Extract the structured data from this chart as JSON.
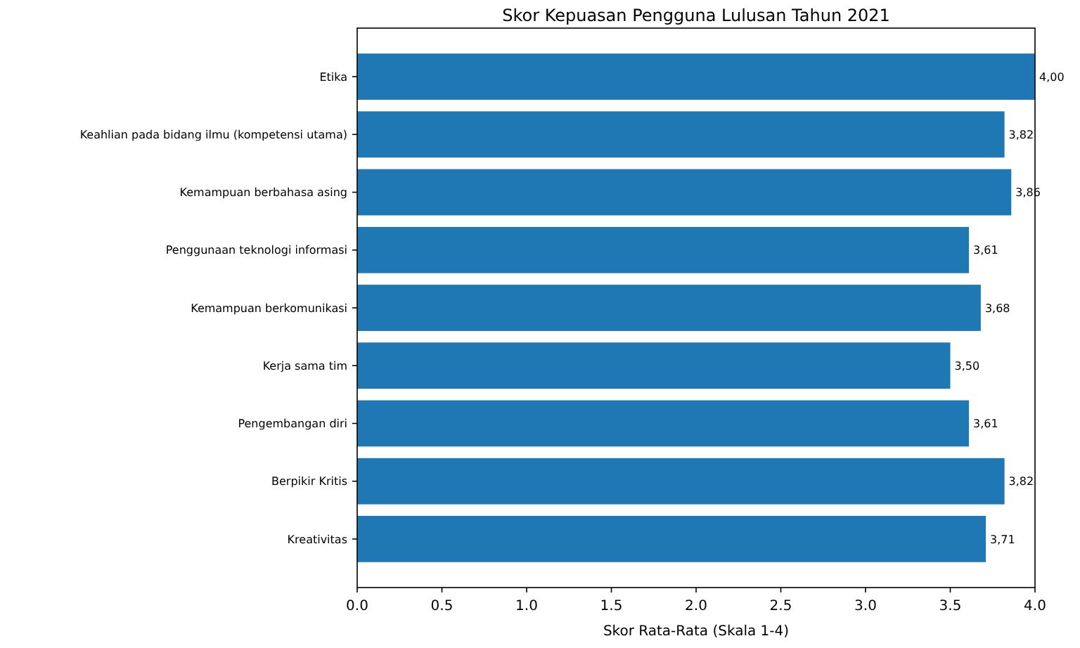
{
  "chart_data": {
    "type": "bar",
    "orientation": "horizontal",
    "title": "Skor Kepuasan Pengguna Lulusan Tahun 2021",
    "xlabel": "Skor Rata-Rata (Skala 1-4)",
    "categories": [
      "Etika",
      "Keahlian pada bidang ilmu (kompetensi utama)",
      "Kemampuan berbahasa asing",
      "Penggunaan teknologi informasi",
      "Kemampuan berkomunikasi",
      "Kerja sama tim",
      "Pengembangan diri",
      "Berpikir Kritis",
      "Kreativitas"
    ],
    "values": [
      4.0,
      3.82,
      3.86,
      3.61,
      3.68,
      3.5,
      3.61,
      3.82,
      3.71
    ],
    "value_labels": [
      "4,00",
      "3,82",
      "3,86",
      "3,61",
      "3,68",
      "3,50",
      "3,61",
      "3,82",
      "3,71"
    ],
    "color": "#1f77b4",
    "xlim": [
      0,
      4
    ],
    "xticks": [
      {
        "value": 0,
        "label": "0.0"
      },
      {
        "value": 0.5,
        "label": "0.5"
      },
      {
        "value": 1,
        "label": "1.0"
      },
      {
        "value": 1.5,
        "label": "1.5"
      },
      {
        "value": 2,
        "label": "2.0"
      },
      {
        "value": 2.5,
        "label": "2.5"
      },
      {
        "value": 3,
        "label": "3.0"
      },
      {
        "value": 3.5,
        "label": "3.5"
      },
      {
        "value": 4,
        "label": "4.0"
      }
    ],
    "grid": false
  }
}
